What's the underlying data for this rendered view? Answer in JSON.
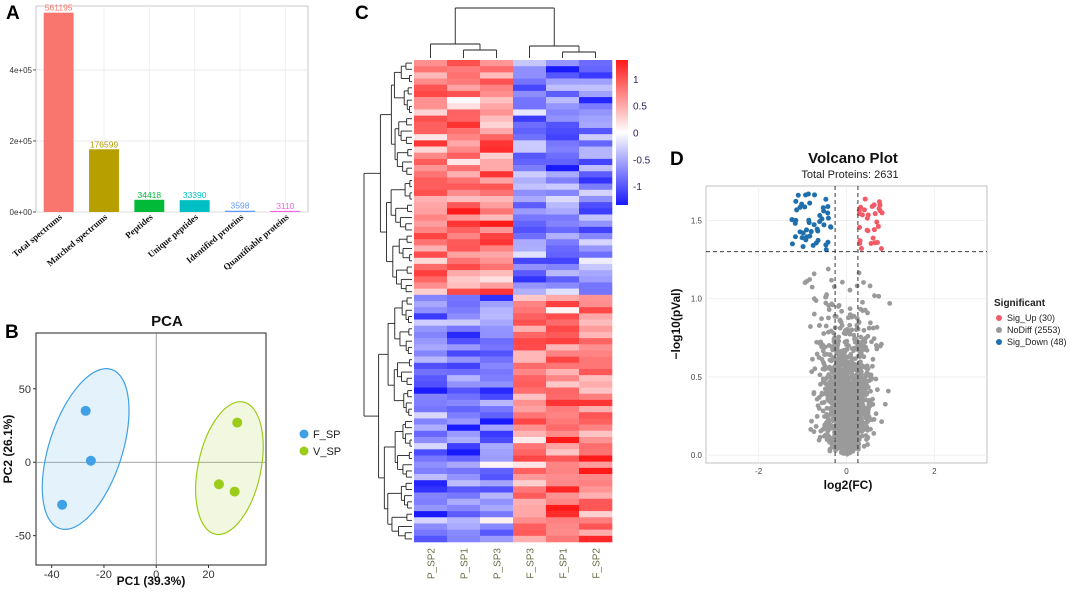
{
  "panels": {
    "a": "A",
    "b": "B",
    "c": "C",
    "d": "D"
  },
  "chart_data": [
    {
      "id": "panel-a",
      "type": "bar",
      "categories": [
        "Total spectrums",
        "Matched spectrums",
        "Peptides",
        "Unique peptides",
        "Identified proteins",
        "Quantifiable proteins"
      ],
      "values": [
        561195,
        176599,
        34418,
        33390,
        3598,
        3110
      ],
      "value_labels": [
        "561195",
        "176599",
        "34418",
        "33390",
        "3598",
        "3110"
      ],
      "colors": [
        "#f8766d",
        "#b79f00",
        "#00ba38",
        "#00bfc4",
        "#619cff",
        "#f564e3"
      ],
      "ylim": [
        0,
        580000
      ],
      "yticks": [
        0,
        200000,
        400000
      ],
      "ytick_labels": [
        "0e+00",
        "2e+05",
        "4e+05"
      ],
      "grid": true
    },
    {
      "id": "panel-b",
      "type": "scatter",
      "title": "PCA",
      "xlabel": "PC1 (39.3%)",
      "ylabel": "PC2 (26.1%)",
      "xlim": [
        -46,
        42
      ],
      "ylim": [
        -70,
        88
      ],
      "xticks": [
        -40,
        -20,
        0,
        20
      ],
      "yticks": [
        -50,
        0,
        50
      ],
      "series": [
        {
          "name": "F_SP",
          "color": "#3fa0e6",
          "points": [
            {
              "x": -27,
              "y": 35
            },
            {
              "x": -25,
              "y": 1
            },
            {
              "x": -36,
              "y": -29
            }
          ]
        },
        {
          "name": "V_SP",
          "color": "#9ccc1a",
          "points": [
            {
              "x": 31,
              "y": 27
            },
            {
              "x": 24,
              "y": -15
            },
            {
              "x": 30,
              "y": -20
            }
          ]
        }
      ]
    },
    {
      "id": "panel-c",
      "type": "heatmap",
      "columns": [
        "P_SP2",
        "P_SP1",
        "P_SP3",
        "F_SP3",
        "F_SP1",
        "F_SP2"
      ],
      "colorbar_ticks": [
        1,
        0.5,
        0,
        -0.5,
        -1
      ],
      "colorbar_labels": [
        "1",
        "0.5",
        "0",
        "-0.5",
        "-1"
      ],
      "colors": {
        "low": "#1a1aff",
        "mid": "#ffffff",
        "high": "#ff1a1a"
      },
      "n_rows": 78,
      "cluster_sizes": [
        38,
        40
      ]
    },
    {
      "id": "panel-d",
      "type": "scatter",
      "title": "Volcano Plot",
      "subtitle": "Total Proteins: 2631",
      "xlabel": "log2(FC)",
      "ylabel": "−log10(pVal)",
      "xlim": [
        -3.2,
        3.2
      ],
      "ylim": [
        -0.05,
        1.72
      ],
      "xticks": [
        -2,
        0,
        2
      ],
      "yticks": [
        0.0,
        0.5,
        1.0,
        1.5
      ],
      "ytick_labels": [
        "0.0",
        "0.5",
        "1.0",
        "1.5"
      ],
      "thresholds": {
        "x": [
          -0.26,
          0.26
        ],
        "y": 1.3
      },
      "legend_title": "Significant",
      "legend": [
        {
          "name": "Sig_Up (30)",
          "color": "#f25a66",
          "count": 30
        },
        {
          "name": "NoDiff (2553)",
          "color": "#9a9a9a",
          "count": 2553
        },
        {
          "name": "Sig_Down (48)",
          "color": "#1f6fad",
          "count": 48
        }
      ]
    }
  ]
}
